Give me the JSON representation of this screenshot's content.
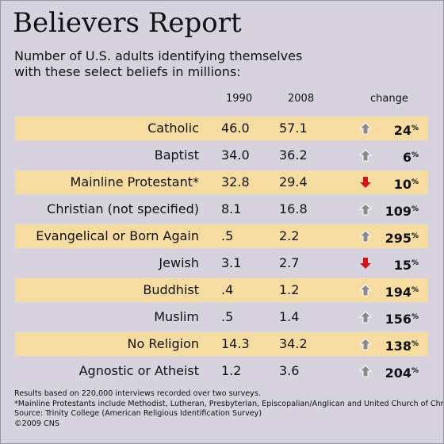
{
  "title": "Believers Report",
  "subtitle": "Number of U.S. adults identifying themselves with these select beliefs in millions:",
  "headers": {
    "y1990": "1990",
    "y2008": "2008",
    "change": "change"
  },
  "pct_unit": "%",
  "colors": {
    "background": "#d6d3de",
    "row_highlight": "#f7dca2",
    "up_arrow": "#8a8a8a",
    "down_arrow": "#d0121b"
  },
  "chart_data": {
    "type": "table",
    "columns": [
      "1990",
      "2008",
      "change"
    ],
    "rows": [
      {
        "label": "Catholic",
        "y1990": "46.0",
        "y2008": "57.1",
        "direction": "up",
        "change": "24"
      },
      {
        "label": "Baptist",
        "y1990": "34.0",
        "y2008": "36.2",
        "direction": "up",
        "change": "6"
      },
      {
        "label": "Mainline Protestant*",
        "y1990": "32.8",
        "y2008": "29.4",
        "direction": "down",
        "change": "10"
      },
      {
        "label": "Christian (not specified)",
        "y1990": "8.1",
        "y2008": "16.8",
        "direction": "up",
        "change": "109"
      },
      {
        "label": "Evangelical or Born Again",
        "y1990": ".5",
        "y2008": "2.2",
        "direction": "up",
        "change": "295"
      },
      {
        "label": "Jewish",
        "y1990": "3.1",
        "y2008": "2.7",
        "direction": "down",
        "change": "15"
      },
      {
        "label": "Buddhist",
        "y1990": ".4",
        "y2008": "1.2",
        "direction": "up",
        "change": "194"
      },
      {
        "label": "Muslim",
        "y1990": ".5",
        "y2008": "1.4",
        "direction": "up",
        "change": "156"
      },
      {
        "label": "No Religion",
        "y1990": "14.3",
        "y2008": "34.2",
        "direction": "up",
        "change": "138"
      },
      {
        "label": "Agnostic or Atheist",
        "y1990": "1.2",
        "y2008": "3.6",
        "direction": "up",
        "change": "204"
      }
    ]
  },
  "notes": [
    "Results based on 220,000 interviews recorded over two surveys.",
    "*Mainline Protestants include Methodist, Lutheran, Presbyterian, Episcopalian/Anglican and United Church of Christ.",
    "Source: Trinity College (American Religious Identification Survey)",
    "©2009 CNS"
  ]
}
